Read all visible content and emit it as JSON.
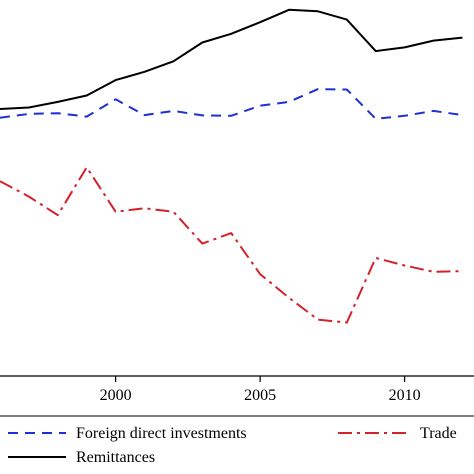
{
  "chart_data": {
    "type": "line",
    "title": "",
    "xlabel": "",
    "ylabel": "",
    "xlim": [
      1996,
      2012.4
    ],
    "ylim": [
      0,
      100
    ],
    "x_ticks": [
      2000,
      2005,
      2010
    ],
    "x_tick_labels": [
      "2000",
      "2005",
      "2010"
    ],
    "grid": false,
    "legend_position": "bottom",
    "series": [
      {
        "name": "Foreign direct investments",
        "color": "#1f2fd6",
        "dash": "dashed",
        "x": [
          1996,
          1997,
          1998,
          1999,
          2000,
          2001,
          2002,
          2003,
          2004,
          2005,
          2006,
          2007,
          2008,
          2009,
          2010,
          2011,
          2012
        ],
        "y": [
          68.7,
          69.7,
          69.9,
          69.0,
          73.6,
          69.4,
          70.5,
          69.3,
          69.2,
          71.9,
          72.9,
          76.3,
          76.2,
          68.4,
          69.2,
          70.5,
          69.4
        ]
      },
      {
        "name": "Trade",
        "color": "#d4222a",
        "dash": "dashdot",
        "x": [
          1996,
          1997,
          1998,
          1999,
          2000,
          2001,
          2002,
          2003,
          2004,
          2005,
          2006,
          2007,
          2008,
          2009,
          2010,
          2011,
          2012
        ],
        "y": [
          51.8,
          47.7,
          42.8,
          55.5,
          43.7,
          44.6,
          43.7,
          35.2,
          38.0,
          27.1,
          20.8,
          15.0,
          14.2,
          31.4,
          29.4,
          27.7,
          27.9
        ]
      },
      {
        "name": "Remittances",
        "color": "#000000",
        "dash": "solid",
        "x": [
          1996,
          1997,
          1998,
          1999,
          2000,
          2001,
          2002,
          2003,
          2004,
          2005,
          2006,
          2007,
          2008,
          2009,
          2010,
          2011,
          2012
        ],
        "y": [
          71.0,
          71.4,
          72.9,
          74.6,
          78.7,
          80.9,
          83.7,
          88.7,
          91.0,
          94.1,
          97.4,
          97.0,
          94.8,
          86.4,
          87.4,
          89.2,
          90.0
        ]
      }
    ]
  }
}
